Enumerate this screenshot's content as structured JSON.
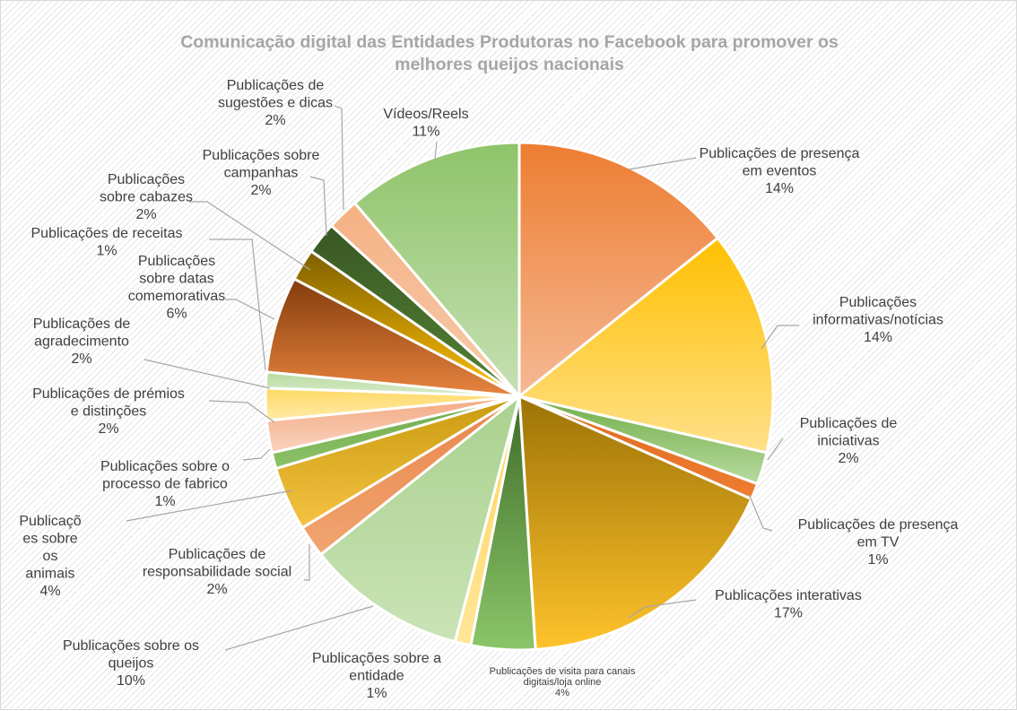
{
  "chart_data": {
    "type": "pie",
    "title": "Comunicação digital das Entidades Produtoras no Facebook para promover os melhores queijos nacionais",
    "title_lines": [
      "Comunicação digital das Entidades Produtoras no Facebook para promover os",
      "melhores queijos nacionais"
    ],
    "legend": "none",
    "slices": [
      {
        "name": "Publicações de presença em eventos",
        "value": 14,
        "label_lines": [
          "Publicações de presença",
          "em eventos",
          "14%"
        ],
        "colors": [
          "#ED7D31",
          "#F5B994"
        ]
      },
      {
        "name": "Publicações informativas/notícias",
        "value": 14,
        "label_lines": [
          "Publicações",
          "informativas/notícias",
          "14%"
        ],
        "colors": [
          "#FFC000",
          "#FFE08A"
        ]
      },
      {
        "name": "Publicações de iniciativas",
        "value": 2,
        "label_lines": [
          "Publicações de",
          "iniciativas",
          "2%"
        ],
        "colors": [
          "#70AD47",
          "#B8DBA0"
        ]
      },
      {
        "name": "Publicações de presença em TV",
        "value": 1,
        "label_lines": [
          "Publicações de presença",
          "em TV",
          "1%"
        ],
        "colors": [
          "#E06A20",
          "#ED7D31"
        ]
      },
      {
        "name": "Publicações interativas",
        "value": 17,
        "label_lines": [
          "Publicações interativas",
          "17%"
        ],
        "colors": [
          "#9C7306",
          "#FFC32B"
        ]
      },
      {
        "name": "Publicações de visita para canais digitais/loja online",
        "value": 4,
        "label_lines": [
          "Publicações de visita para canais",
          "digitais/loja online",
          "4%"
        ],
        "colors": [
          "#3E6B28",
          "#8BC66A"
        ],
        "small": true
      },
      {
        "name": "Publicações sobre a entidade",
        "value": 1,
        "label_lines": [
          "Publicações sobre a",
          "entidade",
          "1%"
        ],
        "colors": [
          "#FFD45A",
          "#FFE699"
        ]
      },
      {
        "name": "Publicações sobre os queijos",
        "value": 10,
        "label_lines": [
          "Publicações sobre os",
          "queijos",
          "10%"
        ],
        "colors": [
          "#A9D18E",
          "#C9E3B6"
        ]
      },
      {
        "name": "Publicações de responsabilidade social",
        "value": 2,
        "label_lines": [
          "Publicações de",
          "responsabilidade social",
          "2%"
        ],
        "colors": [
          "#E8854A",
          "#F1A571"
        ]
      },
      {
        "name": "Publicações sobre os animais",
        "value": 4,
        "label_lines": [
          "Publicaçõ",
          "es sobre",
          "os",
          "animais",
          "4%"
        ],
        "colors": [
          "#C99A10",
          "#F5C342"
        ]
      },
      {
        "name": "Publicações sobre o processo de fabrico",
        "value": 1,
        "label_lines": [
          "Publicações sobre o",
          "processo de fabrico",
          "1%"
        ],
        "colors": [
          "#6FAA4A",
          "#8CC168"
        ]
      },
      {
        "name": "Publicações de prémios e distinções",
        "value": 2,
        "label_lines": [
          "Publicações de prémios",
          "e distinções",
          "2%"
        ],
        "colors": [
          "#F2A982",
          "#FAD3BE"
        ]
      },
      {
        "name": "Publicações de agradecimento",
        "value": 2,
        "label_lines": [
          "Publicações de",
          "agradecimento",
          "2%"
        ],
        "colors": [
          "#FFD966",
          "#FFEBA8"
        ]
      },
      {
        "name": "Publicações de receitas",
        "value": 1,
        "label_lines": [
          "Publicações de receitas",
          "1%"
        ],
        "colors": [
          "#B8DBA0",
          "#D6EAC8"
        ]
      },
      {
        "name": "Publicações sobre datas comemorativas",
        "value": 6,
        "label_lines": [
          "Publicações",
          "sobre datas",
          "comemorativas",
          "6%"
        ],
        "colors": [
          "#843C0C",
          "#E7843F"
        ]
      },
      {
        "name": "Publicações sobre cabazes",
        "value": 2,
        "label_lines": [
          "Publicações",
          "sobre cabazes",
          "2%"
        ],
        "colors": [
          "#7F6000",
          "#FFC000"
        ]
      },
      {
        "name": "Publicações sobre campanhas",
        "value": 2,
        "label_lines": [
          "Publicações sobre",
          "campanhas",
          "2%"
        ],
        "colors": [
          "#385723",
          "#548235"
        ]
      },
      {
        "name": "Publicações de sugestões e dicas",
        "value": 2,
        "label_lines": [
          "Publicações de",
          "sugestões e dicas",
          "2%"
        ],
        "colors": [
          "#F4B183",
          "#F8CBAD"
        ]
      },
      {
        "name": "Vídeos/Reels",
        "value": 11,
        "label_lines": [
          "Vídeos/Reels",
          "11%"
        ],
        "colors": [
          "#8FC46A",
          "#C6E0B4"
        ]
      }
    ]
  }
}
